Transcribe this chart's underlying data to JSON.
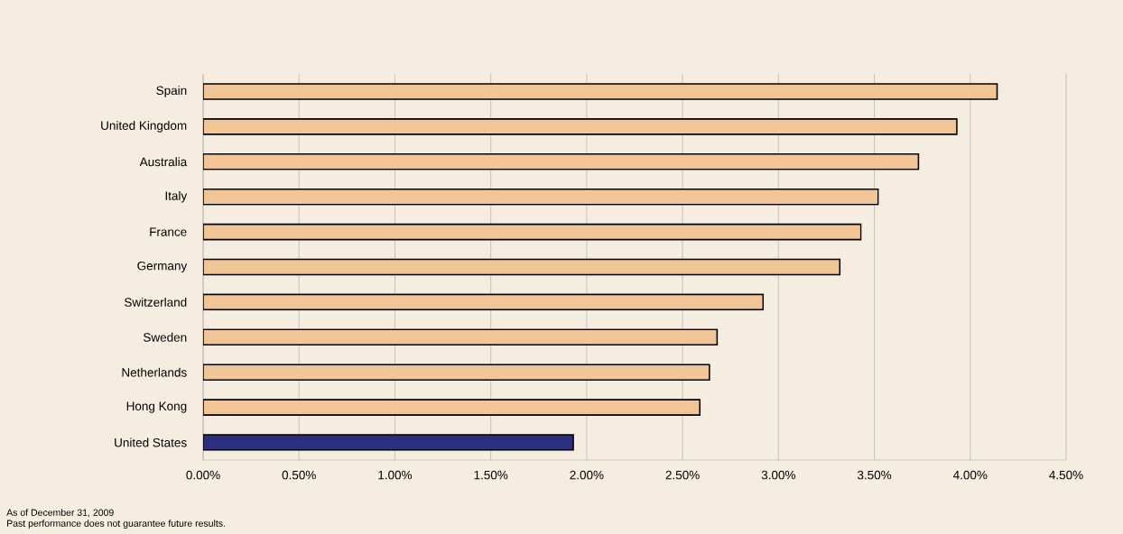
{
  "chart_data": {
    "type": "bar",
    "orientation": "horizontal",
    "categories": [
      "Spain",
      "United Kingdom",
      "Australia",
      "Italy",
      "France",
      "Germany",
      "Switzerland",
      "Sweden",
      "Netherlands",
      "Hong Kong",
      "United States"
    ],
    "values": [
      4.14,
      3.93,
      3.73,
      3.52,
      3.43,
      3.32,
      2.92,
      2.68,
      2.64,
      2.59,
      1.93
    ],
    "colors": [
      "#f2c596",
      "#f2c596",
      "#f2c596",
      "#f2c596",
      "#f2c596",
      "#f2c596",
      "#f2c596",
      "#f2c596",
      "#f2c596",
      "#f2c596",
      "#2b2d7e"
    ],
    "xlim": [
      0,
      4.5
    ],
    "xticks": [
      {
        "value": 0,
        "label": "0.00%"
      },
      {
        "value": 0.5,
        "label": "0.50%"
      },
      {
        "value": 1,
        "label": "1.00%"
      },
      {
        "value": 1.5,
        "label": "1.50%"
      },
      {
        "value": 2,
        "label": "2.00%"
      },
      {
        "value": 2.5,
        "label": "2.50%"
      },
      {
        "value": 3,
        "label": "3.00%"
      },
      {
        "value": 3.5,
        "label": "3.50%"
      },
      {
        "value": 4,
        "label": "4.00%"
      },
      {
        "value": 4.5,
        "label": "4.50%"
      }
    ],
    "grid": "x",
    "annotations": [
      "As of December 31, 2009",
      "Past performance does not guarantee future results."
    ]
  }
}
